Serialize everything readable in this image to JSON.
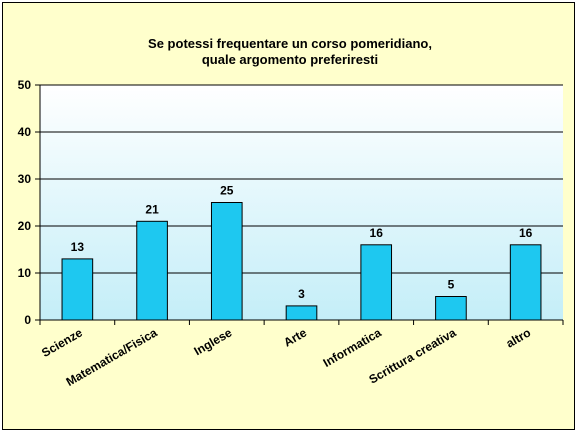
{
  "chart_data": {
    "type": "bar",
    "title_lines": [
      "Se potessi  frequentare un corso  pomeridiano,",
      "quale argomento preferiresti"
    ],
    "categories": [
      "Scienze",
      "Matematica/Fisica",
      "Inglese",
      "Arte",
      "Informatica",
      "Scrittura creativa",
      "altro"
    ],
    "values": [
      13,
      21,
      25,
      3,
      16,
      5,
      16
    ],
    "data_labels": [
      "13",
      "21",
      "25",
      "3",
      "16",
      "5",
      "16"
    ],
    "ylim": [
      0,
      50
    ],
    "yticks": [
      0,
      10,
      20,
      30,
      40,
      50
    ],
    "ytick_labels": [
      "0",
      "10",
      "20",
      "30",
      "40",
      "50"
    ],
    "grid": true,
    "legend": false,
    "colors": {
      "bar_fill": "#1ec8f0",
      "bar_stroke": "#000000",
      "frame_background": "#ffffcc",
      "plot_gradient_top": "#ffffff",
      "plot_gradient_bottom": "#c4eef8",
      "grid_line": "#000000"
    }
  }
}
